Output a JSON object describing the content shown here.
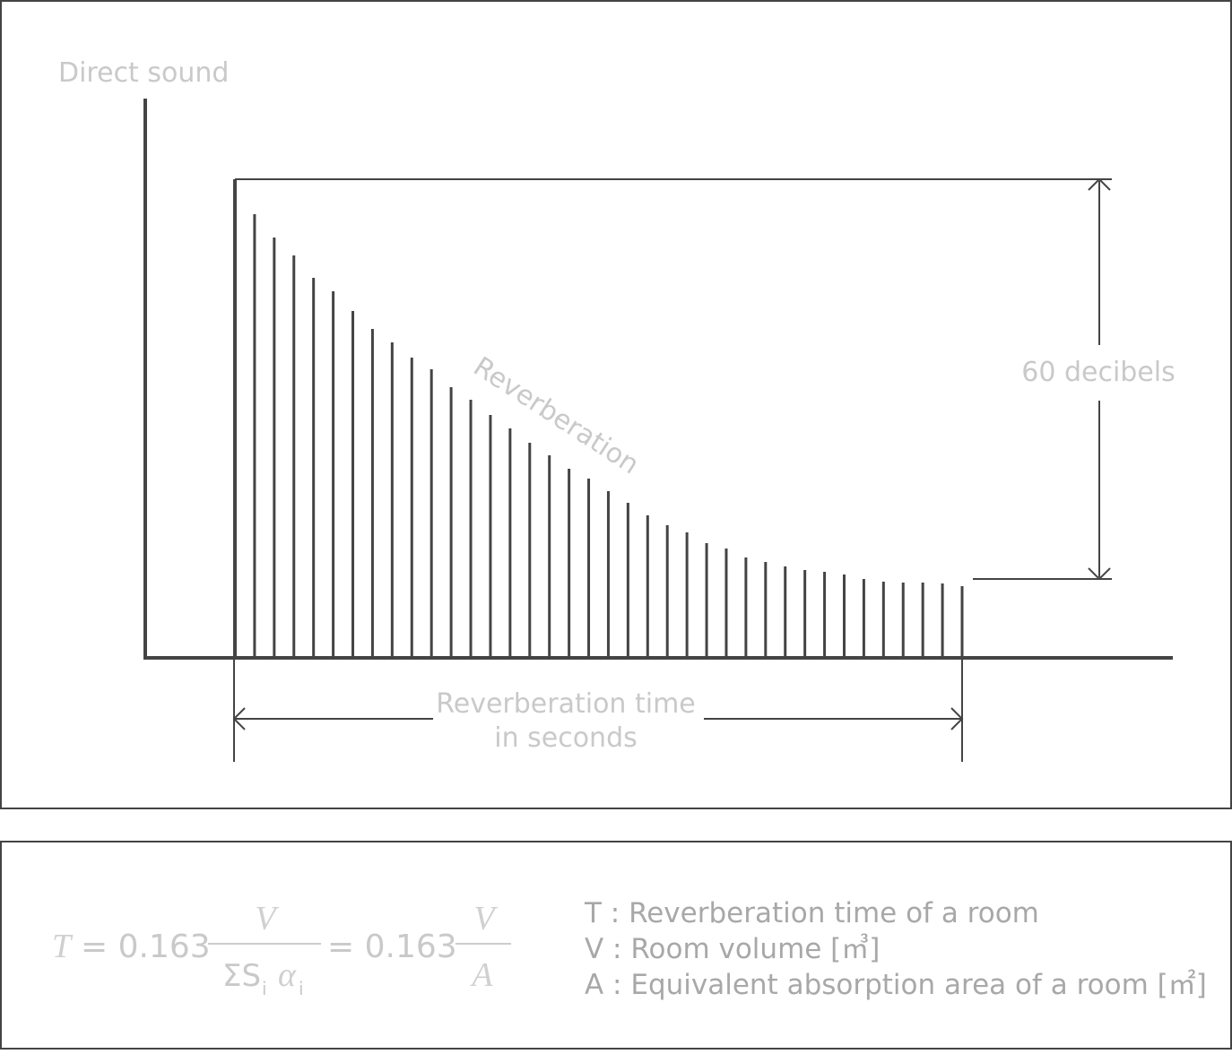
{
  "diagram": {
    "labels": {
      "direct_sound": "Direct sound",
      "reverberation": "Reverberation",
      "decibels": "60 decibels",
      "time_line1": "Reverberation time",
      "time_line2": "in seconds"
    },
    "formula": {
      "lhs": "T",
      "coef1": "= 0.163",
      "num1": "V",
      "den_sum": "ΣS",
      "den_sub1": "i",
      "den_alpha": "α",
      "den_sub2": "i",
      "coef2": "= 0.163",
      "num2": "V",
      "den2": "A"
    },
    "legend": [
      "T : Reverberation time of a room",
      "V : Room volume [㎥]",
      "A : Equivalent absorption area of a room [㎡]"
    ]
  }
}
